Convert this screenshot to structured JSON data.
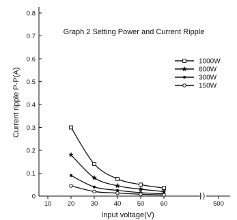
{
  "chart_data": {
    "type": "line",
    "title": "Graph 2 Setting Power and Current Ripple",
    "xlabel": "Input voltage(V)",
    "ylabel": "Current ripple P-P(A)",
    "y_ticks": [
      0,
      0.1,
      0.2,
      0.3,
      0.4,
      0.5,
      0.6,
      0.7,
      0.8
    ],
    "x_ticks": [
      "10",
      "20",
      "30",
      "40",
      "50",
      "60",
      "500"
    ],
    "x_tick_values": [
      10,
      20,
      30,
      40,
      50,
      60,
      500
    ],
    "ylim": [
      0,
      0.85
    ],
    "axis_break": "between 60 and 500",
    "grid": false,
    "legend_position": "right",
    "series": [
      {
        "name": "1000W",
        "marker": "square",
        "x": [
          20,
          30,
          40,
          50,
          60
        ],
        "y": [
          0.3,
          0.14,
          0.075,
          0.05,
          0.035
        ]
      },
      {
        "name": "600W",
        "marker": "star",
        "x": [
          20,
          30,
          40,
          50,
          60
        ],
        "y": [
          0.18,
          0.08,
          0.045,
          0.03,
          0.02
        ]
      },
      {
        "name": "300W",
        "marker": "dot",
        "x": [
          20,
          30,
          40,
          50,
          60
        ],
        "y": [
          0.09,
          0.04,
          0.025,
          0.015,
          0.01
        ]
      },
      {
        "name": "150W",
        "marker": "circle",
        "x": [
          20,
          30,
          40,
          50,
          60
        ],
        "y": [
          0.045,
          0.02,
          0.013,
          0.008,
          0.005
        ]
      }
    ]
  }
}
